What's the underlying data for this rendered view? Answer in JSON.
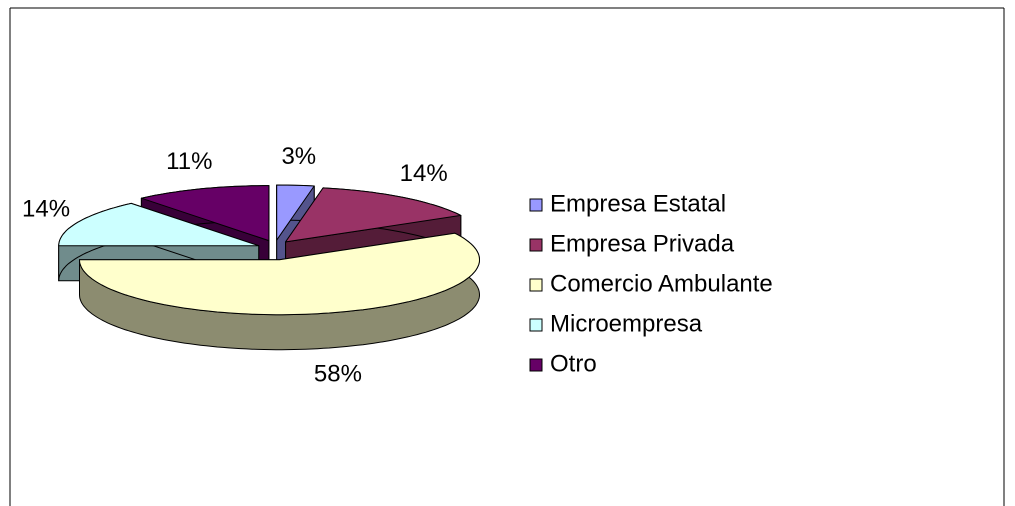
{
  "chart_data": {
    "type": "pie",
    "categories": [
      "Empresa Estatal",
      "Empresa Privada",
      "Comercio Ambulante",
      "Microempresa",
      "Otro"
    ],
    "values": [
      3,
      14,
      58,
      14,
      11
    ],
    "value_labels": [
      "3%",
      "14%",
      "58%",
      "14%",
      "11%"
    ],
    "colors": [
      "#9999ff",
      "#993366",
      "#ffffcc",
      "#ccffff",
      "#660066"
    ],
    "legend": "right",
    "exploded": true,
    "three_d": true
  }
}
